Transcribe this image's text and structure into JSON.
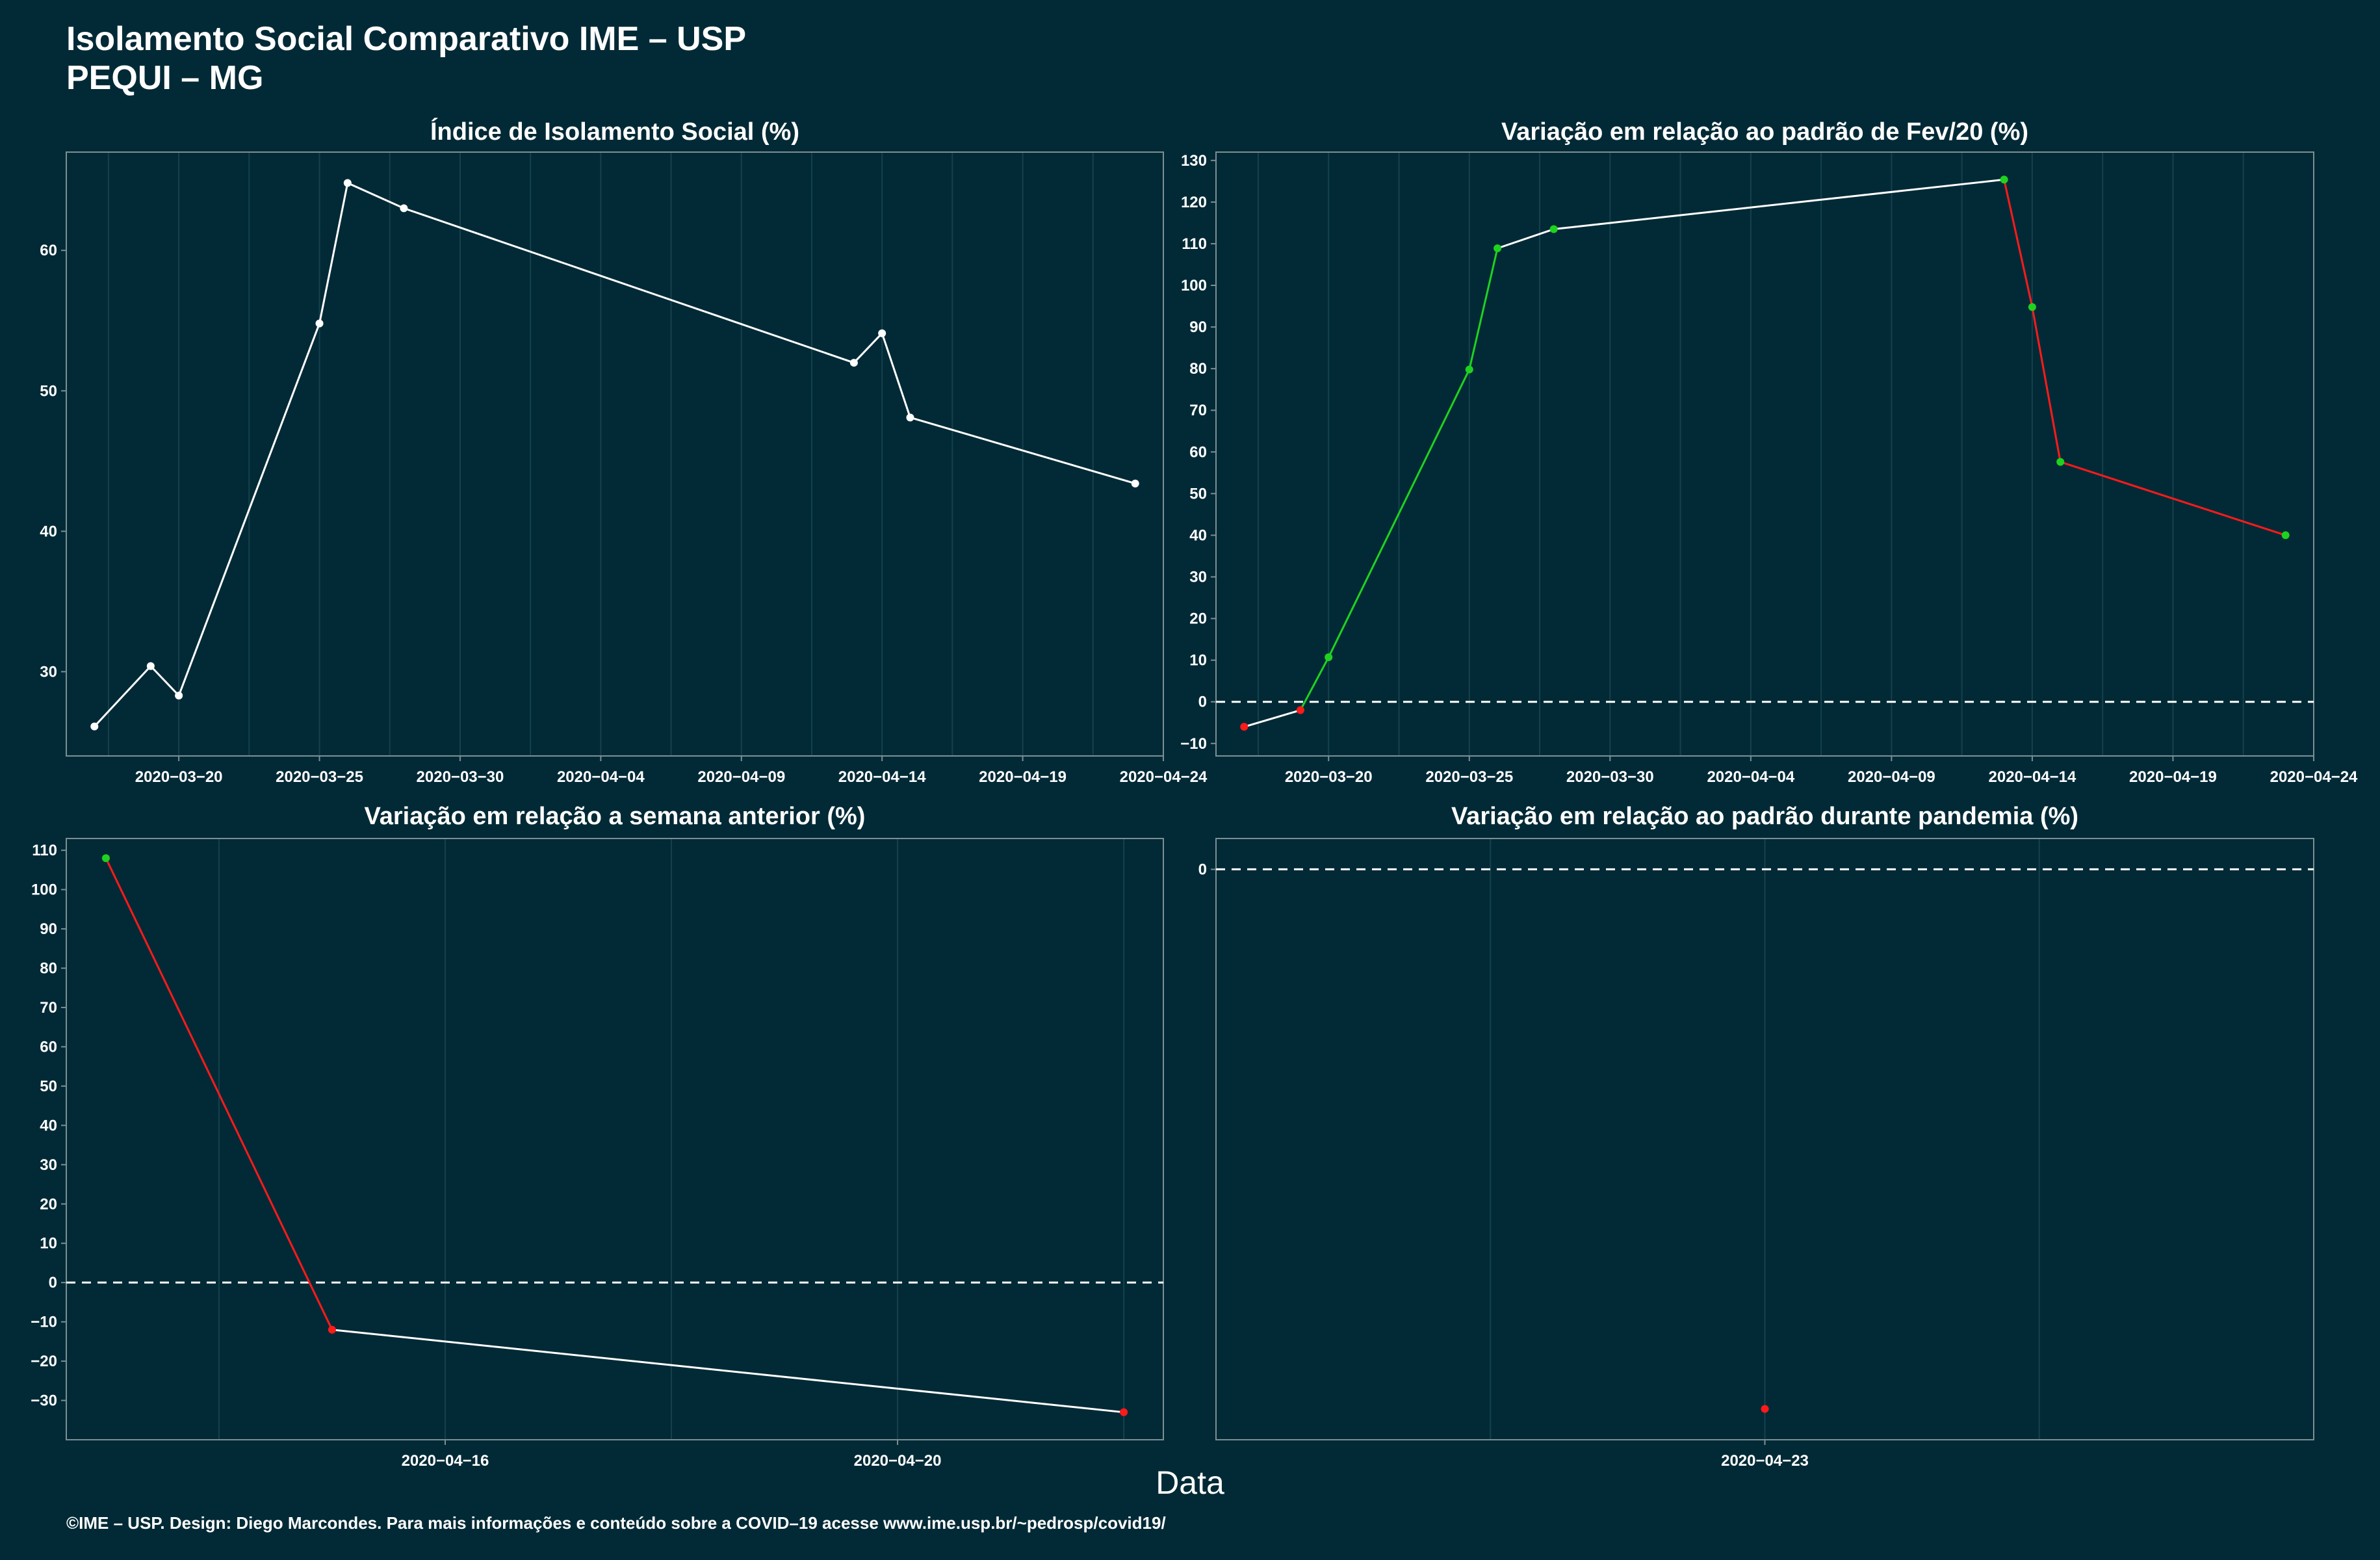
{
  "header": {
    "title": "Isolamento Social Comparativo IME – USP",
    "subtitle": "PEQUI – MG"
  },
  "xlabel": "Data",
  "footer": "©IME – USP. Design: Diego Marcondes. Para mais informações e conteúdo sobre a COVID–19 acesse www.ime.usp.br/~pedrosp/covid19/",
  "colors": {
    "background": "#022a36",
    "line": "#ffffff",
    "up": "#1fd21f",
    "down": "#ff1a1a",
    "grid": "#14414d",
    "frame": "#7c8f94"
  },
  "chart_data": [
    {
      "type": "line",
      "title": "Índice de Isolamento Social (%)",
      "x": [
        "2020-03-17",
        "2020-03-19",
        "2020-03-20",
        "2020-03-25",
        "2020-03-26",
        "2020-03-28",
        "2020-04-13",
        "2020-04-14",
        "2020-04-15",
        "2020-04-23"
      ],
      "y": [
        26.1,
        30.4,
        28.3,
        54.8,
        64.8,
        63.0,
        52.0,
        54.1,
        48.1,
        43.4
      ],
      "xticks": [
        "2020-03-20",
        "2020-03-25",
        "2020-03-30",
        "2020-04-04",
        "2020-04-09",
        "2020-04-14",
        "2020-04-19",
        "2020-04-24"
      ],
      "yticks": [
        30,
        40,
        50,
        60
      ],
      "xlim": [
        "2020-03-16",
        "2020-04-24"
      ],
      "ylim": [
        24,
        67
      ],
      "point_color": "white"
    },
    {
      "type": "line",
      "title": "Variação em relação ao padrão de Fev/20 (%)",
      "x": [
        "2020-03-17",
        "2020-03-19",
        "2020-03-20",
        "2020-03-25",
        "2020-03-26",
        "2020-03-28",
        "2020-04-13",
        "2020-04-14",
        "2020-04-15",
        "2020-04-23"
      ],
      "y": [
        -6,
        -2,
        10.7,
        79.8,
        108.9,
        113.5,
        125.4,
        94.8,
        57.6,
        40.0
      ],
      "xticks": [
        "2020-03-20",
        "2020-03-25",
        "2020-03-30",
        "2020-04-04",
        "2020-04-09",
        "2020-04-14",
        "2020-04-19",
        "2020-04-24"
      ],
      "yticks": [
        -10,
        0,
        10,
        20,
        30,
        40,
        50,
        60,
        70,
        80,
        90,
        100,
        110,
        120,
        130
      ],
      "xlim": [
        "2020-03-16",
        "2020-04-24"
      ],
      "ylim": [
        -13,
        132
      ],
      "reference_line": 0,
      "point_color": "by-sign"
    },
    {
      "type": "line",
      "title": "Variação em relação a semana anterior (%)",
      "x": [
        "2020-04-13",
        "2020-04-15",
        "2020-04-22"
      ],
      "y": [
        108,
        -12,
        -33
      ],
      "xticks": [
        "2020-04-16",
        "2020-04-20"
      ],
      "yticks": [
        -30,
        -20,
        -10,
        0,
        10,
        20,
        30,
        40,
        50,
        60,
        70,
        80,
        90,
        100,
        110
      ],
      "xlim": [
        "2020-04-12.65",
        "2020-04-22.35"
      ],
      "ylim": [
        -40,
        113
      ],
      "reference_line": 0,
      "point_color": "by-sign"
    },
    {
      "type": "scatter",
      "title": "Variação em relação ao padrão durante pandemia (%)",
      "x": [
        "2020-04-23"
      ],
      "y": [
        -14
      ],
      "xticks": [
        "2020-04-23"
      ],
      "yticks": [
        0
      ],
      "xlim": [
        "2020-04-22",
        "2020-04-24"
      ],
      "ylim": [
        -14.8,
        0.8
      ],
      "reference_line": 0,
      "point_color": "down"
    }
  ]
}
